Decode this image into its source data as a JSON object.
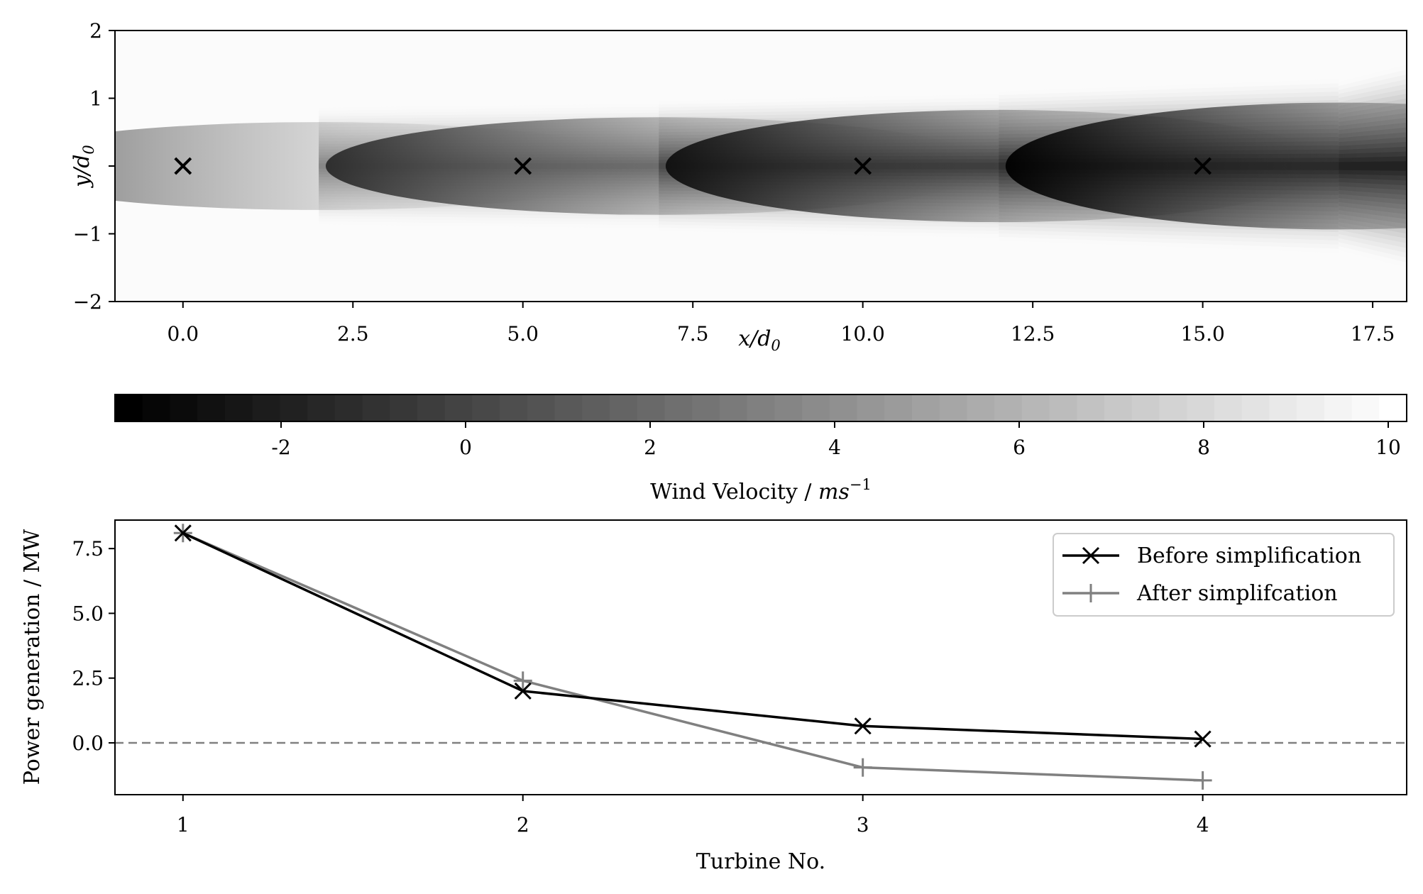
{
  "chart_data": [
    {
      "type": "heatmap",
      "title": "",
      "xlabel": "x/d0",
      "ylabel": "y/d0",
      "xlim": [
        -1,
        18
      ],
      "ylim": [
        -2,
        2
      ],
      "xticks": [
        "0.0",
        "2.5",
        "5.0",
        "7.5",
        "10.0",
        "12.5",
        "15.0",
        "17.5"
      ],
      "xtick_values": [
        0,
        2.5,
        5,
        7.5,
        10,
        12.5,
        15,
        17.5
      ],
      "yticks": [
        "2",
        "1",
        "",
        "−1",
        "−2"
      ],
      "ytick_values": [
        2,
        1,
        0,
        -1,
        -2
      ],
      "turbines": {
        "marker": "x",
        "x": [
          0,
          5,
          10,
          15
        ],
        "y": [
          0,
          0,
          0,
          0
        ]
      },
      "wake_field": {
        "wake_starts_x": [
          2.0,
          7.0,
          12.0,
          17.0
        ],
        "wake_halfwidth_at_start": [
          0.9,
          1.0,
          1.15,
          1.3
        ],
        "wake_halfwidth_at_end": [
          1.1,
          1.25,
          1.4,
          1.7
        ],
        "free_stream_velocity": 10,
        "min_centerline_velocity": [
          2.0,
          -1.5,
          -3.0,
          -3.8
        ]
      },
      "colorbar": {
        "label": "Wind Velocity / ms−1",
        "range": [
          -3.8,
          10.2
        ],
        "ticks": [
          "-2",
          "0",
          "2",
          "4",
          "6",
          "8",
          "10"
        ],
        "tick_values": [
          -2,
          0,
          2,
          4,
          6,
          8,
          10
        ],
        "colormap": "gray"
      }
    },
    {
      "type": "line",
      "title": "",
      "xlabel": "Turbine No.",
      "ylabel": "Power generation / MW",
      "xlim": [
        0.8,
        4.6
      ],
      "ylim": [
        -2.0,
        8.6
      ],
      "xticks": [
        "1",
        "2",
        "3",
        "4"
      ],
      "xtick_values": [
        1,
        2,
        3,
        4
      ],
      "yticks": [
        "7.5",
        "5.0",
        "2.5",
        "0.0"
      ],
      "ytick_values": [
        7.5,
        5.0,
        2.5,
        0.0
      ],
      "x": [
        1,
        2,
        3,
        4
      ],
      "series": [
        {
          "name": "Before simplification",
          "values": [
            8.1,
            2.0,
            0.65,
            0.15
          ],
          "color": "#000000",
          "marker": "x"
        },
        {
          "name": "After simplifcation",
          "values": [
            8.1,
            2.4,
            -0.95,
            -1.45
          ],
          "color": "#808080",
          "marker": "+"
        }
      ],
      "reference_line": {
        "y": 0,
        "style": "dashed",
        "color": "#808080"
      },
      "legend": {
        "position": "top-right"
      }
    }
  ]
}
